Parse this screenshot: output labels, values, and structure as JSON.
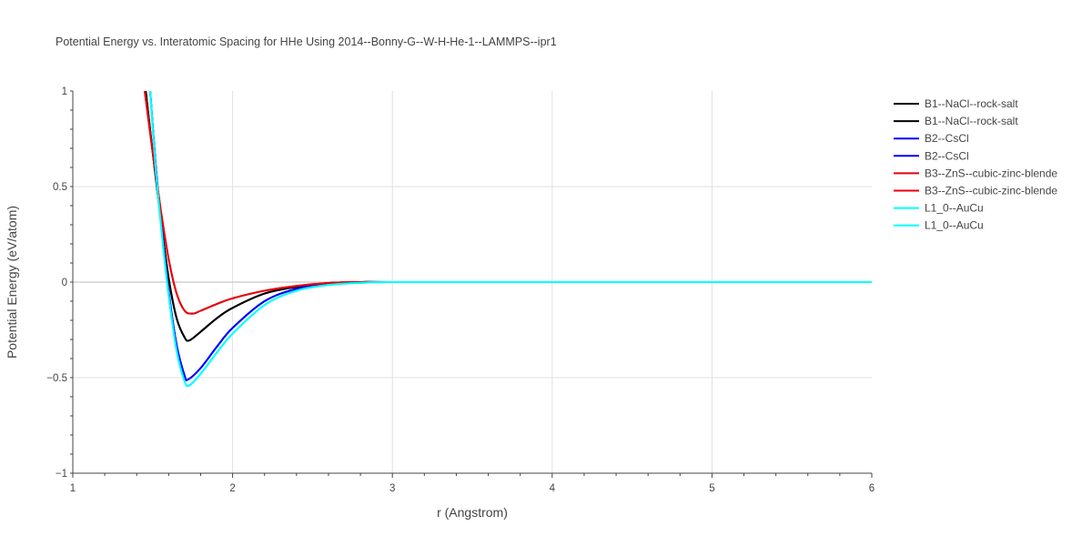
{
  "chart_data": {
    "type": "line",
    "title": "Potential Energy vs. Interatomic Spacing for HHe Using 2014--Bonny-G--W-H-He-1--LAMMPS--ipr1",
    "xlabel": "r (Angstrom)",
    "ylabel": "Potential Energy (eV/atom)",
    "xlim": [
      1,
      6
    ],
    "ylim": [
      -1,
      1
    ],
    "xticks": [
      1,
      2,
      3,
      4,
      5,
      6
    ],
    "yticks": [
      -1,
      -0.5,
      0,
      0.5,
      1
    ],
    "ytick_labels": [
      "−1",
      "−0.5",
      "0",
      "0.5",
      "1"
    ],
    "grid": true,
    "legend_position": "top-right",
    "series": [
      {
        "name": "B1--NaCl--rock-salt",
        "color": "#000000",
        "x": [
          1.45,
          1.5,
          1.55,
          1.6,
          1.65,
          1.7,
          1.73,
          1.8,
          1.9,
          2.0,
          2.2,
          2.4,
          2.6,
          2.8,
          3.0,
          4.0,
          5.0,
          6.0
        ],
        "y": [
          1.05,
          0.68,
          0.33,
          0.02,
          -0.19,
          -0.29,
          -0.305,
          -0.26,
          -0.19,
          -0.135,
          -0.06,
          -0.025,
          -0.005,
          0,
          0,
          0,
          0,
          0
        ]
      },
      {
        "name": "B1--NaCl--rock-salt",
        "color": "#000000",
        "x": [
          1.45,
          1.5,
          1.55,
          1.6,
          1.65,
          1.7,
          1.73,
          1.8,
          1.9,
          2.0,
          2.2,
          2.4,
          2.6,
          2.8,
          3.0,
          4.0,
          5.0,
          6.0
        ],
        "y": [
          1.05,
          0.68,
          0.33,
          0.02,
          -0.19,
          -0.29,
          -0.305,
          -0.26,
          -0.19,
          -0.135,
          -0.06,
          -0.025,
          -0.005,
          0,
          0,
          0,
          0,
          0
        ]
      },
      {
        "name": "B2--CsCl",
        "color": "#0000ff",
        "x": [
          1.48,
          1.52,
          1.56,
          1.6,
          1.65,
          1.7,
          1.72,
          1.8,
          1.9,
          2.0,
          2.2,
          2.4,
          2.6,
          2.8,
          3.0,
          4.0,
          5.0,
          6.0
        ],
        "y": [
          1.05,
          0.6,
          0.25,
          -0.05,
          -0.33,
          -0.49,
          -0.51,
          -0.45,
          -0.34,
          -0.24,
          -0.1,
          -0.035,
          -0.01,
          0,
          0,
          0,
          0,
          0
        ]
      },
      {
        "name": "B2--CsCl",
        "color": "#0000ff",
        "x": [
          1.48,
          1.52,
          1.56,
          1.6,
          1.65,
          1.7,
          1.72,
          1.8,
          1.9,
          2.0,
          2.2,
          2.4,
          2.6,
          2.8,
          3.0,
          4.0,
          5.0,
          6.0
        ],
        "y": [
          1.05,
          0.6,
          0.25,
          -0.05,
          -0.33,
          -0.49,
          -0.51,
          -0.45,
          -0.34,
          -0.24,
          -0.1,
          -0.035,
          -0.01,
          0,
          0,
          0,
          0,
          0
        ]
      },
      {
        "name": "B3--ZnS--cubic-zinc-blende",
        "color": "#e8000b",
        "x": [
          1.45,
          1.5,
          1.55,
          1.6,
          1.65,
          1.7,
          1.75,
          1.8,
          1.9,
          2.0,
          2.2,
          2.4,
          2.6,
          2.8,
          3.0,
          4.0,
          5.0,
          6.0
        ],
        "y": [
          1.0,
          0.68,
          0.38,
          0.12,
          -0.06,
          -0.15,
          -0.165,
          -0.15,
          -0.115,
          -0.085,
          -0.045,
          -0.02,
          -0.005,
          0,
          0,
          0,
          0,
          0
        ]
      },
      {
        "name": "B3--ZnS--cubic-zinc-blende",
        "color": "#e8000b",
        "x": [
          1.45,
          1.5,
          1.55,
          1.6,
          1.65,
          1.7,
          1.75,
          1.8,
          1.9,
          2.0,
          2.2,
          2.4,
          2.6,
          2.8,
          3.0,
          4.0,
          5.0,
          6.0
        ],
        "y": [
          1.0,
          0.68,
          0.38,
          0.12,
          -0.06,
          -0.15,
          -0.165,
          -0.15,
          -0.115,
          -0.085,
          -0.045,
          -0.02,
          -0.005,
          0,
          0,
          0,
          0,
          0
        ]
      },
      {
        "name": "L1_0--AuCu",
        "color": "#00ffff",
        "x": [
          1.48,
          1.52,
          1.56,
          1.6,
          1.65,
          1.7,
          1.73,
          1.8,
          1.9,
          2.0,
          2.2,
          2.4,
          2.6,
          2.8,
          3.0,
          4.0,
          5.0,
          6.0
        ],
        "y": [
          1.05,
          0.58,
          0.23,
          -0.07,
          -0.36,
          -0.52,
          -0.54,
          -0.48,
          -0.37,
          -0.27,
          -0.12,
          -0.045,
          -0.015,
          -0.004,
          0,
          0,
          0,
          0
        ]
      },
      {
        "name": "L1_0--AuCu",
        "color": "#00ffff",
        "x": [
          1.48,
          1.52,
          1.56,
          1.6,
          1.65,
          1.7,
          1.73,
          1.8,
          1.9,
          2.0,
          2.2,
          2.4,
          2.6,
          2.8,
          3.0,
          4.0,
          5.0,
          6.0
        ],
        "y": [
          1.05,
          0.58,
          0.23,
          -0.07,
          -0.36,
          -0.52,
          -0.54,
          -0.48,
          -0.37,
          -0.27,
          -0.12,
          -0.045,
          -0.015,
          -0.004,
          0,
          0,
          0,
          0
        ]
      }
    ]
  }
}
